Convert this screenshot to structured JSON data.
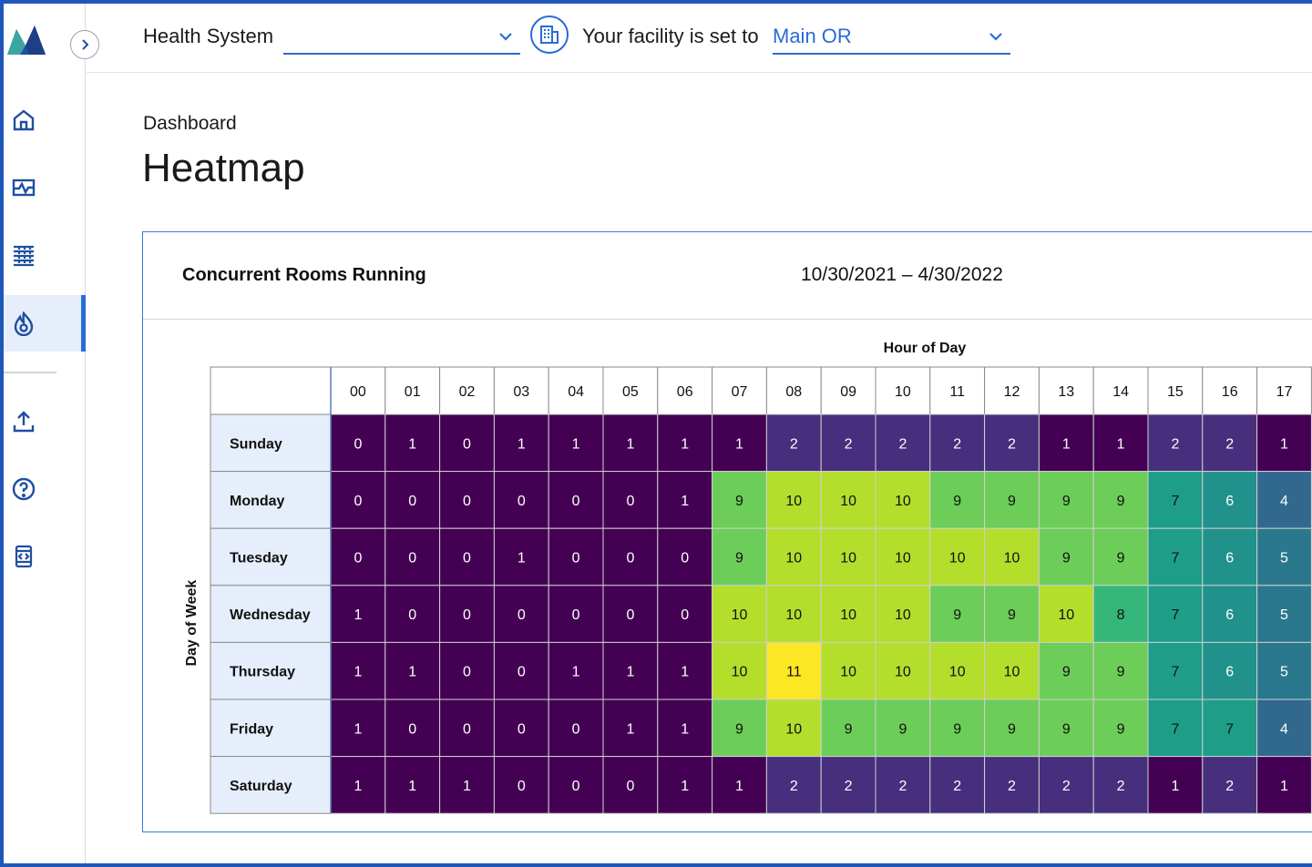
{
  "header": {
    "health_system_label": "Health System",
    "health_system_value": "",
    "facility_label": "Your facility is set to",
    "facility_value": "Main OR"
  },
  "sidebar": {
    "items": [
      {
        "name": "home",
        "icon": "home-icon",
        "active": false
      },
      {
        "name": "monitor",
        "icon": "monitor-icon",
        "active": false
      },
      {
        "name": "grid",
        "icon": "grid-icon",
        "active": false
      },
      {
        "name": "heatmap",
        "icon": "flame-icon",
        "active": true
      },
      {
        "name": "upload",
        "icon": "upload-icon",
        "active": false
      },
      {
        "name": "help",
        "icon": "help-icon",
        "active": false
      },
      {
        "name": "script",
        "icon": "script-icon",
        "active": false
      }
    ]
  },
  "page": {
    "breadcrumb": "Dashboard",
    "title": "Heatmap"
  },
  "card": {
    "title": "Concurrent Rooms Running",
    "date_range": "10/30/2021 – 4/30/2022"
  },
  "chart_data": {
    "type": "heatmap",
    "xlabel": "Hour of Day",
    "ylabel": "Day of Week",
    "x": [
      "00",
      "01",
      "02",
      "03",
      "04",
      "05",
      "06",
      "07",
      "08",
      "09",
      "10",
      "11",
      "12",
      "13",
      "14",
      "15",
      "16",
      "17"
    ],
    "y": [
      "Sunday",
      "Monday",
      "Tuesday",
      "Wednesday",
      "Thursday",
      "Friday",
      "Saturday"
    ],
    "values": [
      [
        0,
        1,
        0,
        1,
        1,
        1,
        1,
        1,
        2,
        2,
        2,
        2,
        2,
        1,
        1,
        2,
        2,
        1
      ],
      [
        0,
        0,
        0,
        0,
        0,
        0,
        1,
        9,
        10,
        10,
        10,
        9,
        9,
        9,
        9,
        7,
        6,
        4
      ],
      [
        0,
        0,
        0,
        1,
        0,
        0,
        0,
        9,
        10,
        10,
        10,
        10,
        10,
        9,
        9,
        7,
        6,
        5
      ],
      [
        1,
        0,
        0,
        0,
        0,
        0,
        0,
        10,
        10,
        10,
        10,
        9,
        9,
        10,
        8,
        7,
        6,
        5
      ],
      [
        1,
        1,
        0,
        0,
        1,
        1,
        1,
        10,
        11,
        10,
        10,
        10,
        10,
        9,
        9,
        7,
        6,
        5
      ],
      [
        1,
        0,
        0,
        0,
        0,
        1,
        1,
        9,
        10,
        9,
        9,
        9,
        9,
        9,
        9,
        7,
        7,
        4
      ],
      [
        1,
        1,
        1,
        0,
        0,
        0,
        1,
        1,
        2,
        2,
        2,
        2,
        2,
        2,
        2,
        1,
        2,
        1
      ]
    ],
    "color_scale": {
      "0": "#440154",
      "1": "#440154",
      "2": "#472f7d",
      "4": "#31688e",
      "5": "#2a788e",
      "6": "#21918c",
      "7": "#1e9e89",
      "8": "#35b779",
      "9": "#6dcd59",
      "10": "#b4de2c",
      "11": "#fde725"
    }
  }
}
